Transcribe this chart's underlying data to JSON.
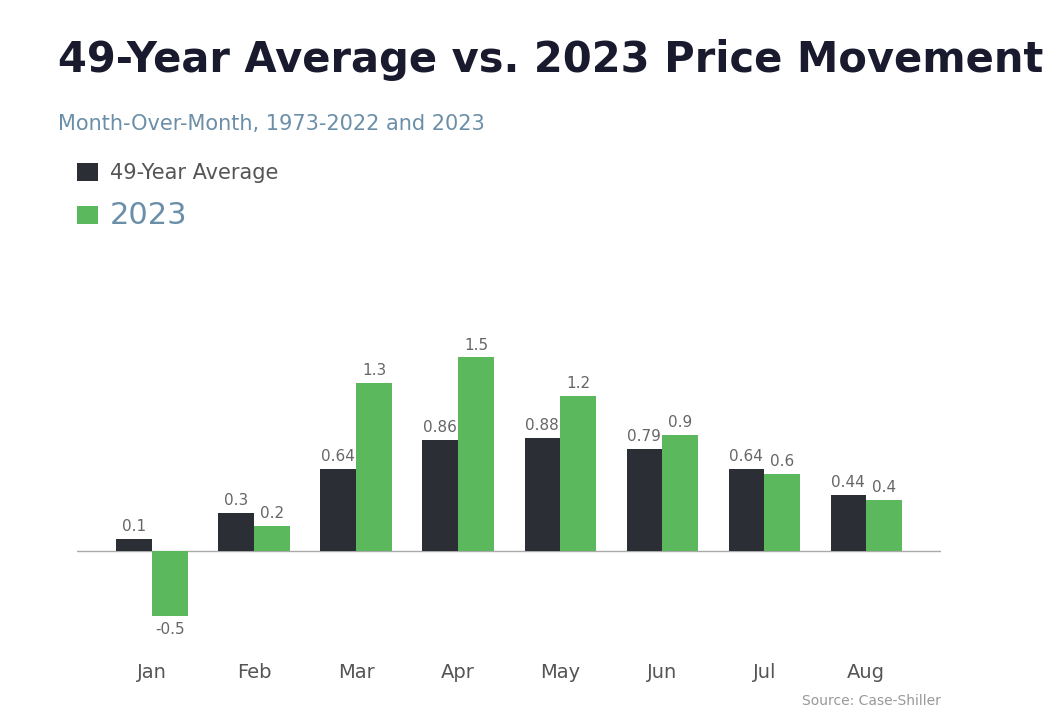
{
  "title": "49-Year Average vs. 2023 Price Movement",
  "subtitle": "Month-Over-Month, 1973-2022 and 2023",
  "months": [
    "Jan",
    "Feb",
    "Mar",
    "Apr",
    "May",
    "Jun",
    "Jul",
    "Aug"
  ],
  "avg_values": [
    0.1,
    0.3,
    0.64,
    0.86,
    0.88,
    0.79,
    0.64,
    0.44
  ],
  "year2023_values": [
    -0.5,
    0.2,
    1.3,
    1.5,
    1.2,
    0.9,
    0.6,
    0.4
  ],
  "avg_color": "#2b2e34",
  "year2023_color": "#5cb85c",
  "legend_avg": "49-Year Average",
  "legend_2023": "2023",
  "source": "Source: Case-Shiller",
  "top_bar_color": "#29abe2",
  "top_bar_height": 0.012,
  "background_color": "#ffffff",
  "title_fontsize": 30,
  "subtitle_fontsize": 15,
  "legend_avg_fontsize": 15,
  "legend_2023_fontsize": 22,
  "label_fontsize": 11,
  "xtick_fontsize": 14,
  "bar_width": 0.35,
  "ylim": [
    -0.82,
    1.85
  ]
}
